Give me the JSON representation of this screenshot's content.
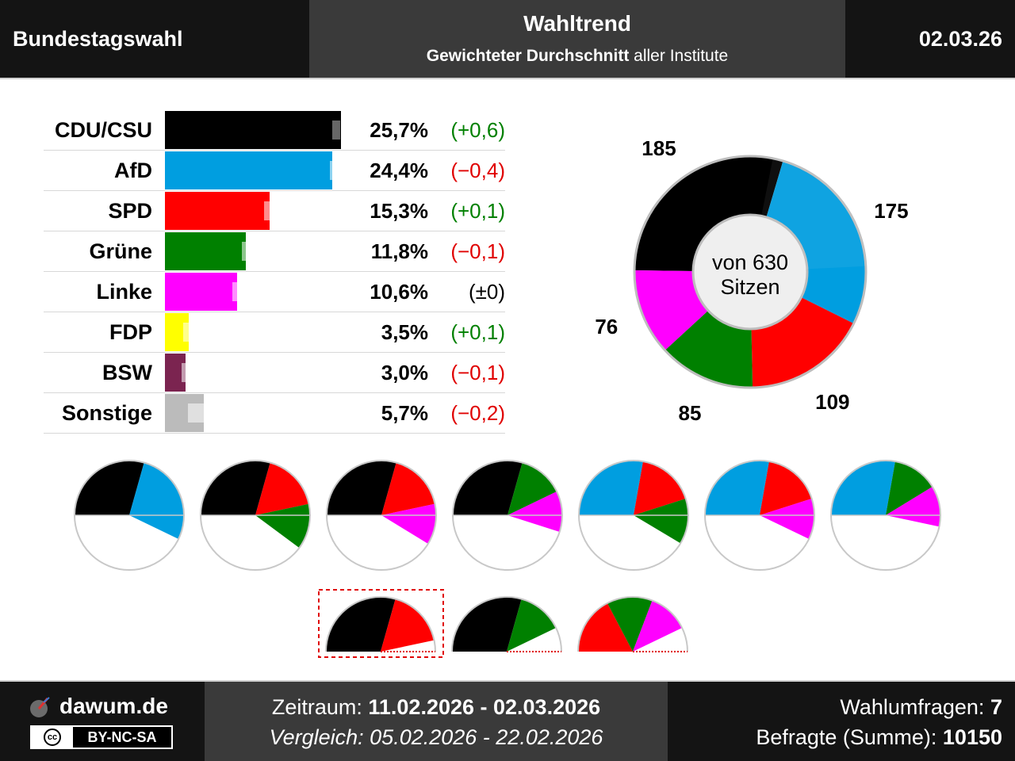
{
  "header": {
    "left_title": "Bundestagswahl",
    "center_title": "Wahltrend",
    "subtitle_bold": "Gewichteter Durchschnitt",
    "subtitle_rest": "aller Institute",
    "date": "02.03.26"
  },
  "colors": {
    "cdu": "#000000",
    "afd": "#009EE0",
    "spd": "#FF0000",
    "gruene": "#008000",
    "linke": "#FF00FF",
    "fdp": "#FFFF00",
    "bsw": "#7B2450",
    "sonstige": "#BBBBBB",
    "positive": "#008000",
    "negative": "#E00000"
  },
  "chart_data": [
    {
      "type": "bar",
      "orientation": "horizontal",
      "categories": [
        "CDU/CSU",
        "AfD",
        "SPD",
        "Grüne",
        "Linke",
        "FDP",
        "BSW",
        "Sonstige"
      ],
      "values": [
        25.7,
        24.4,
        15.3,
        11.8,
        10.6,
        3.5,
        3.0,
        5.7
      ],
      "value_labels": [
        "25,7%",
        "24,4%",
        "15,3%",
        "11,8%",
        "10,6%",
        "3,5%",
        "3,0%",
        "5,7%"
      ],
      "previous_values": [
        25.1,
        24.8,
        15.2,
        11.9,
        10.6,
        3.4,
        3.1,
        5.9
      ],
      "changes": [
        0.6,
        -0.4,
        0.1,
        -0.1,
        0.0,
        0.1,
        -0.1,
        -0.2
      ],
      "change_labels": [
        "(+0,6)",
        "(−0,4)",
        "(+0,1)",
        "(−0,1)",
        "(±0)",
        "(+0,1)",
        "(−0,1)",
        "(−0,2)"
      ],
      "colors": [
        "#000000",
        "#009EE0",
        "#FF0000",
        "#008000",
        "#FF00FF",
        "#FFFF00",
        "#7B2450",
        "#BBBBBB"
      ]
    },
    {
      "type": "pie",
      "variant": "donut",
      "categories": [
        "CDU/CSU",
        "AfD",
        "SPD",
        "Grüne",
        "Linke"
      ],
      "values": [
        185,
        175,
        109,
        85,
        76
      ],
      "colors": [
        "#000000",
        "#009EE0",
        "#FF0000",
        "#008000",
        "#FF00FF"
      ],
      "center_label_1": "von 630",
      "center_label_2": "Sitzen"
    }
  ],
  "coalitions": {
    "row1": [
      [
        "cdu",
        "afd"
      ],
      [
        "cdu",
        "spd",
        "gruene"
      ],
      [
        "cdu",
        "spd",
        "linke"
      ],
      [
        "cdu",
        "gruene",
        "linke"
      ],
      [
        "afd",
        "spd",
        "gruene"
      ],
      [
        "afd",
        "spd",
        "linke"
      ],
      [
        "afd",
        "gruene",
        "linke"
      ]
    ],
    "row2": [
      [
        "cdu",
        "spd"
      ],
      [
        "cdu",
        "gruene"
      ],
      [
        "spd",
        "gruene",
        "linke"
      ]
    ],
    "row2_highlight_index": 0
  },
  "footer": {
    "brand": "dawum.de",
    "license": "BY-NC-SA",
    "cc_symbol": "cc",
    "zeitraum_label": "Zeitraum:",
    "zeitraum_value": "11.02.2026 - 02.03.2026",
    "vergleich_label": "Vergleich:",
    "vergleich_value": "05.02.2026 - 22.02.2026",
    "umfragen_label": "Wahlumfragen:",
    "umfragen_value": "7",
    "befragte_label": "Befragte (Summe):",
    "befragte_value": "10150"
  }
}
